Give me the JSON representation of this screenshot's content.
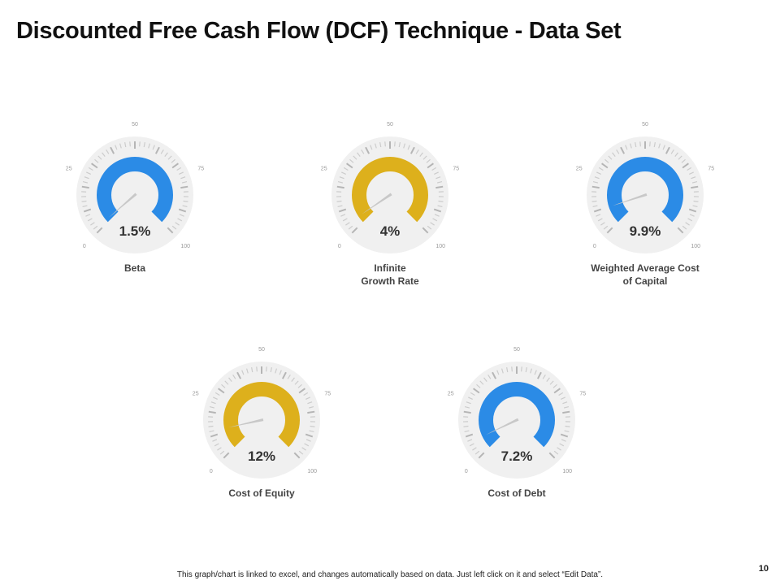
{
  "slide": {
    "title": "Discounted Free Cash Flow (DCF) Technique - Data Set",
    "footer_note": "This graph/chart is linked to excel, and changes automatically based on data. Just left click on it and select “Edit Data”.",
    "page_number": "10"
  },
  "chart_data": [
    {
      "type": "gauge",
      "label": "Beta",
      "value_label": "1.5%",
      "value": 1.5,
      "min": 0,
      "max": 100,
      "tick_labels": [
        "0",
        "25",
        "50",
        "75",
        "100"
      ],
      "color": "#2b8be6"
    },
    {
      "type": "gauge",
      "label": "Infinite Growth Rate",
      "value_label": "4%",
      "value": 4,
      "min": 0,
      "max": 100,
      "tick_labels": [
        "0",
        "25",
        "50",
        "75",
        "100"
      ],
      "color": "#ddb01c"
    },
    {
      "type": "gauge",
      "label": "Weighted Average Cost of Capital",
      "value_label": "9.9%",
      "value": 9.9,
      "min": 0,
      "max": 100,
      "tick_labels": [
        "0",
        "25",
        "50",
        "75",
        "100"
      ],
      "color": "#2b8be6"
    },
    {
      "type": "gauge",
      "label": "Cost of Equity",
      "value_label": "12%",
      "value": 12,
      "min": 0,
      "max": 100,
      "tick_labels": [
        "0",
        "25",
        "50",
        "75",
        "100"
      ],
      "color": "#ddb01c"
    },
    {
      "type": "gauge",
      "label": "Cost of Debt",
      "value_label": "7.2%",
      "value": 7.2,
      "min": 0,
      "max": 100,
      "tick_labels": [
        "0",
        "25",
        "50",
        "75",
        "100"
      ],
      "color": "#2b8be6"
    }
  ]
}
